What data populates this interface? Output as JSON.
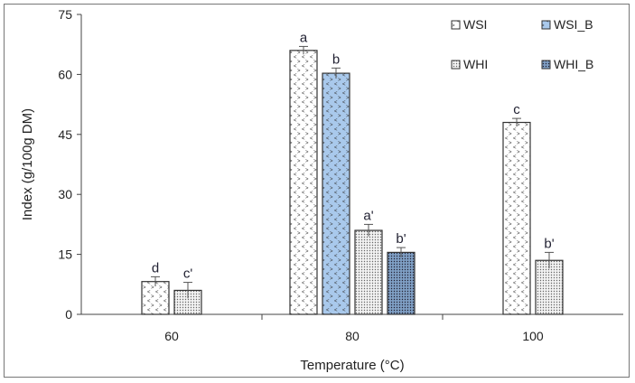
{
  "chart_data": {
    "type": "bar",
    "title": "",
    "xlabel": "Temperature (°C)",
    "ylabel": "Index  (g/100g DM)",
    "categories": [
      "60",
      "80",
      "100"
    ],
    "ylim": [
      0,
      75
    ],
    "yticks": [
      "0",
      "15",
      "30",
      "45",
      "60",
      "75"
    ],
    "grid": false,
    "legend_position": "top-right",
    "series": [
      {
        "name": "WSI",
        "color": "#ffffff",
        "values": [
          8.2,
          66,
          48
        ],
        "errors": [
          1.2,
          1,
          1
        ],
        "labels": [
          "d",
          "a",
          "c"
        ]
      },
      {
        "name": "WSI_B",
        "color": "#a9c9ec",
        "values": [
          null,
          60.3,
          null
        ],
        "errors": [
          null,
          1.3,
          null
        ],
        "labels": [
          null,
          "b",
          null
        ]
      },
      {
        "name": "WHI",
        "color": "#e6e6e6",
        "values": [
          6,
          21,
          13.5
        ],
        "errors": [
          2,
          1.5,
          2
        ],
        "labels": [
          "c'",
          "a'",
          "b'"
        ]
      },
      {
        "name": "WHI_B",
        "color": "#7f9fc4",
        "values": [
          null,
          15.5,
          null
        ],
        "errors": [
          null,
          1.2,
          null
        ],
        "labels": [
          null,
          "b'",
          null
        ]
      }
    ]
  }
}
